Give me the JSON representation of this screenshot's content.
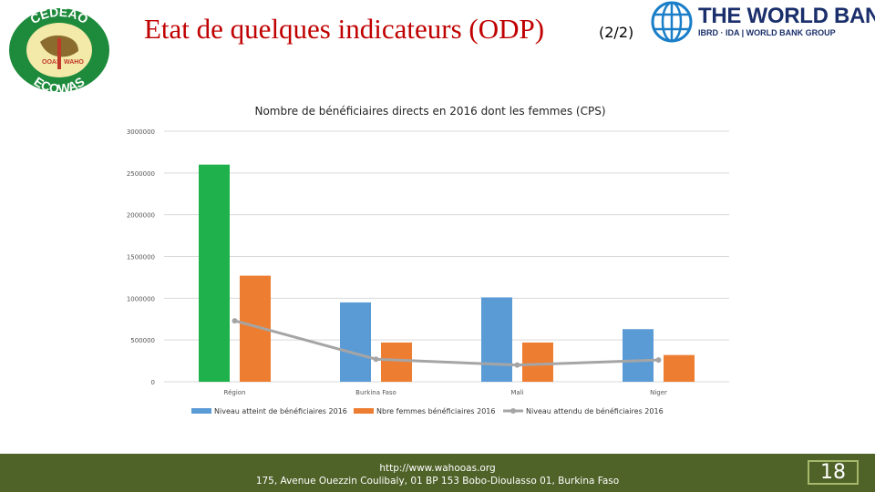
{
  "header": {
    "title": "Etat de quelques indicateurs (ODP)",
    "page_indicator": "(2/2)",
    "logo_left": {
      "ring_top": "CEDEAO",
      "ring_bottom": "ECOWAS",
      "left_text": "OOAS",
      "right_text": "WAHO"
    },
    "logo_right": {
      "name": "THE WORLD BANK",
      "sub": "IBRD · IDA | WORLD BANK GROUP"
    }
  },
  "chart_data": {
    "type": "bar",
    "title": "Nombre de bénéficiaires directs en 2016 dont les femmes (CPS)",
    "categories": [
      "Région",
      "Burkina Faso",
      "Mali",
      "Niger"
    ],
    "series": [
      {
        "name": "Niveau atteint de bénéficiaires 2016",
        "type": "bar",
        "values": [
          2600000,
          950000,
          1010000,
          630000
        ]
      },
      {
        "name": "Nbre femmes bénéficiaires 2016",
        "type": "bar",
        "values": [
          1270000,
          470000,
          470000,
          320000
        ]
      },
      {
        "name": "Niveau attendu de bénéficiaires 2016",
        "type": "line",
        "values": [
          730000,
          270000,
          200000,
          260000
        ]
      }
    ],
    "highlight": {
      "series": 0,
      "index": 0,
      "color": "#1fb14c"
    },
    "colors": [
      "#5b9bd5",
      "#ed7d31",
      "#a5a5a5"
    ],
    "yticks": [
      0,
      500000,
      1000000,
      1500000,
      2000000,
      2500000,
      3000000
    ],
    "ylim": [
      0,
      3000000
    ],
    "grid": true,
    "legend": "bottom"
  },
  "footer": {
    "url": "http://www.wahooas.org",
    "address": "175, Avenue Ouezzin Coulibaly, 01 BP 153 Bobo-Dioulasso 01, Burkina Faso",
    "page_number": "18",
    "background": "#4f6228"
  }
}
